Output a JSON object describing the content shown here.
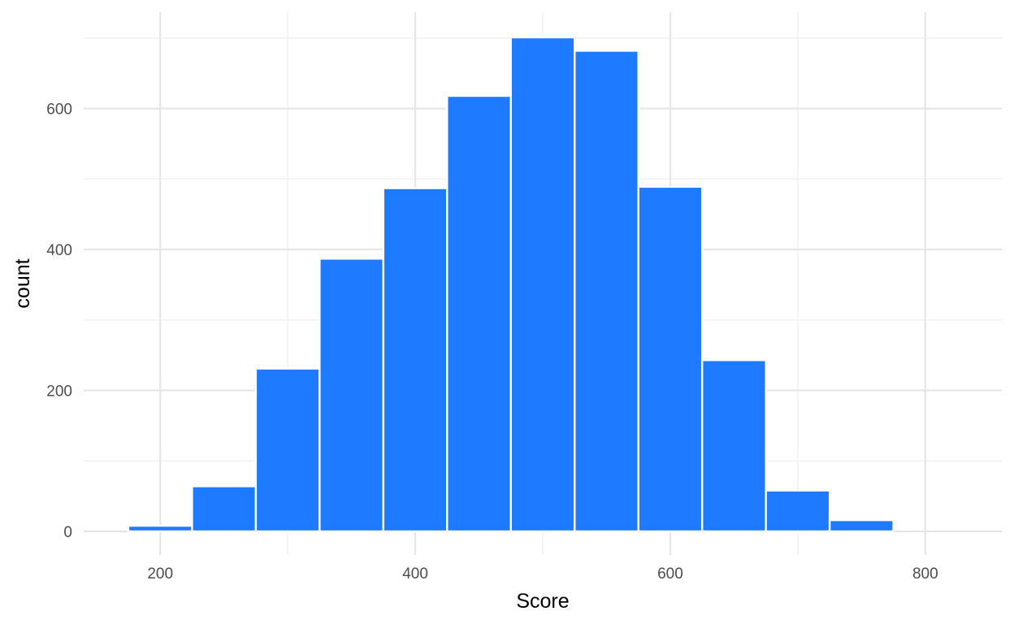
{
  "chart_data": {
    "type": "bar",
    "title": "",
    "xlabel": "Score",
    "ylabel": "count",
    "bin_width": 50,
    "bins": [
      {
        "x0": 175,
        "x1": 225,
        "count": 8
      },
      {
        "x0": 225,
        "x1": 275,
        "count": 64
      },
      {
        "x0": 275,
        "x1": 325,
        "count": 231
      },
      {
        "x0": 325,
        "x1": 375,
        "count": 387
      },
      {
        "x0": 375,
        "x1": 425,
        "count": 487
      },
      {
        "x0": 425,
        "x1": 475,
        "count": 618
      },
      {
        "x0": 475,
        "x1": 525,
        "count": 701
      },
      {
        "x0": 525,
        "x1": 575,
        "count": 682
      },
      {
        "x0": 575,
        "x1": 625,
        "count": 489
      },
      {
        "x0": 625,
        "x1": 675,
        "count": 243
      },
      {
        "x0": 675,
        "x1": 725,
        "count": 58
      },
      {
        "x0": 725,
        "x1": 775,
        "count": 16
      },
      {
        "x0": 775,
        "x1": 825,
        "count": 0
      }
    ],
    "xlim": [
      140,
      860
    ],
    "ylim": [
      -35,
      701
    ],
    "x_ticks": [
      200,
      400,
      600,
      800
    ],
    "x_tick_labels": [
      "200",
      "400",
      "600",
      "800"
    ],
    "x_minor_ticks": [
      300,
      500,
      700
    ],
    "y_ticks": [
      0,
      200,
      400,
      600
    ],
    "y_tick_labels": [
      "0",
      "200",
      "400",
      "600"
    ],
    "y_minor_ticks": [
      100,
      300,
      500,
      700
    ],
    "grid": true,
    "legend": "none",
    "colors": {
      "bar_fill": "#1e7bff",
      "bar_stroke": "#ffffff",
      "grid_major": "#e6e6e6",
      "grid_minor": "#f0f0f0",
      "background": "#ffffff"
    }
  }
}
